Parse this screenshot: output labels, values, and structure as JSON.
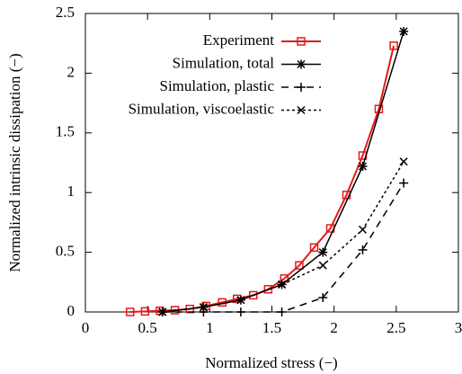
{
  "chart_data": {
    "type": "line",
    "xlabel": "Normalized stress (−)",
    "ylabel": "Normalized intrinsic dissipation (−)",
    "xlim": [
      0,
      3
    ],
    "xticks": [
      0,
      0.5,
      1,
      1.5,
      2,
      2.5,
      3
    ],
    "ylim": [
      0,
      2.5
    ],
    "yticks": [
      0,
      0.5,
      1,
      1.5,
      2,
      2.5
    ],
    "legend": "top-right",
    "series": [
      {
        "name": "Experiment",
        "color": "#e41a1c",
        "marker": "square",
        "dash": "solid",
        "width": 2,
        "x": [
          0.36,
          0.48,
          0.6,
          0.72,
          0.84,
          0.97,
          1.1,
          1.22,
          1.35,
          1.47,
          1.6,
          1.72,
          1.84,
          1.97,
          2.1,
          2.23,
          2.36,
          2.48
        ],
        "values": [
          0,
          0.005,
          0.01,
          0.015,
          0.025,
          0.05,
          0.08,
          0.11,
          0.14,
          0.19,
          0.28,
          0.39,
          0.54,
          0.7,
          0.98,
          1.31,
          1.7,
          2.23
        ]
      },
      {
        "name": "Simulation, total",
        "color": "#000000",
        "marker": "asterisk",
        "dash": "solid",
        "width": 1.5,
        "x": [
          0.62,
          0.95,
          1.25,
          1.58,
          1.91,
          2.23,
          2.56
        ],
        "values": [
          0,
          0.04,
          0.1,
          0.23,
          0.5,
          1.22,
          2.35
        ]
      },
      {
        "name": "Simulation, plastic",
        "color": "#000000",
        "marker": "plus",
        "dash": "dashed",
        "width": 1.5,
        "x": [
          0.62,
          0.95,
          1.25,
          1.58,
          1.91,
          2.23,
          2.56
        ],
        "values": [
          0,
          0,
          0,
          0,
          0.12,
          0.52,
          1.08
        ]
      },
      {
        "name": "Simulation, viscoelastic",
        "color": "#000000",
        "marker": "cross",
        "dash": "dotted",
        "width": 1.5,
        "x": [
          0.62,
          0.95,
          1.25,
          1.58,
          1.91,
          2.23,
          2.56
        ],
        "values": [
          0,
          0.04,
          0.1,
          0.23,
          0.39,
          0.69,
          1.26
        ]
      }
    ]
  }
}
